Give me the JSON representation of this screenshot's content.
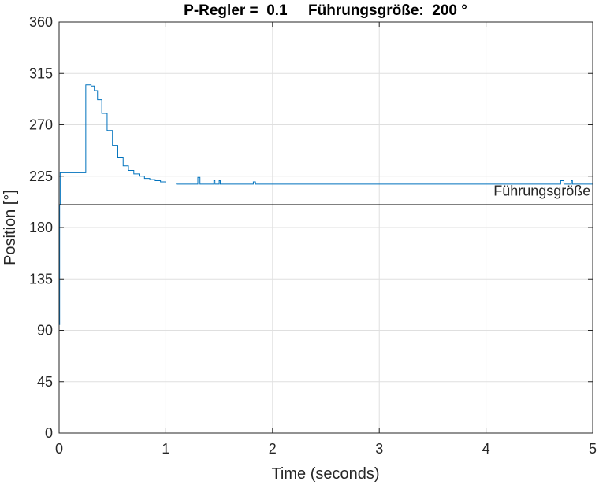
{
  "chart_data": {
    "type": "line",
    "title": "P-Regler =  0.1     Führungsgröße:  200 °",
    "xlabel": "Time (seconds)",
    "ylabel": "Position [°]",
    "xlim": [
      0,
      5
    ],
    "ylim": [
      0,
      360
    ],
    "xticks": [
      0,
      1,
      2,
      3,
      4,
      5
    ],
    "yticks": [
      0,
      45,
      90,
      135,
      180,
      225,
      270,
      315,
      360
    ],
    "grid": true,
    "colors": {
      "response": "#0072BD",
      "reference": "#000000",
      "grid": "#dfdfdf",
      "axis": "#262626"
    },
    "annotations": [
      {
        "text": "Führungsgröße",
        "x": 4.98,
        "y": 208
      }
    ],
    "series": [
      {
        "style": "stairs",
        "x": [
          0,
          0.005,
          0.01,
          0.25,
          0.3,
          0.33,
          0.36,
          0.4,
          0.45,
          0.5,
          0.55,
          0.6,
          0.65,
          0.7,
          0.75,
          0.8,
          0.85,
          0.9,
          0.95,
          1.0,
          1.05,
          1.1,
          1.3,
          1.31,
          1.32,
          1.45,
          1.46,
          1.5,
          1.51,
          1.82,
          1.83,
          1.84,
          2.5,
          3.0,
          3.5,
          4.0,
          4.5,
          4.7,
          4.71,
          4.73,
          4.8,
          4.81,
          5.0
        ],
        "y": [
          95,
          200,
          228,
          305,
          304,
          300,
          292,
          280,
          265,
          252,
          241,
          234,
          230,
          227,
          225,
          223,
          222,
          221,
          220,
          219,
          219,
          218,
          224,
          224,
          218,
          221,
          218,
          221,
          218,
          220,
          220,
          218,
          218,
          218,
          218,
          218,
          218,
          221,
          221,
          218,
          221,
          218,
          218
        ]
      },
      {
        "style": "line",
        "x": [
          0,
          5
        ],
        "y": [
          200,
          200
        ]
      }
    ]
  }
}
